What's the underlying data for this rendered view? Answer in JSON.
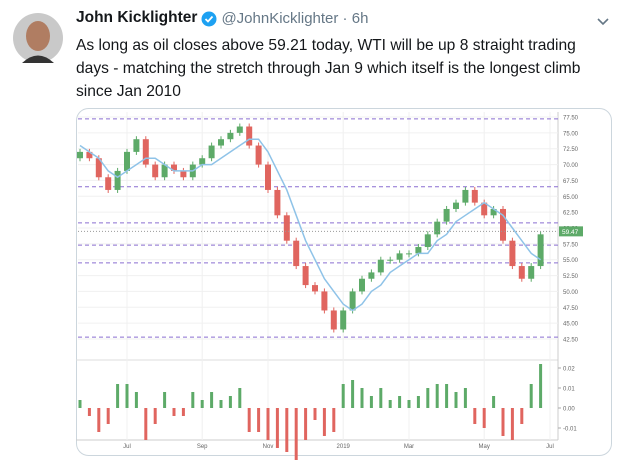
{
  "tweet": {
    "name": "John Kicklighter",
    "handle": "@JohnKicklighter",
    "time": "6h",
    "text": "As long as oil closes above 59.21 today, WTI will be up 8 straight trading days - matching the stretch through Jan 9 which itself is the longest climb since Jan 2010"
  },
  "chart_data": {
    "type": "candlestick",
    "categories": [
      null,
      null,
      null,
      null,
      null,
      "Jul",
      null,
      null,
      null,
      null,
      null,
      null,
      null,
      "Sep",
      null,
      null,
      null,
      null,
      null,
      null,
      "Nov",
      null,
      null,
      null,
      null,
      null,
      null,
      null,
      "2019",
      null,
      null,
      null,
      null,
      null,
      null,
      "Mar",
      null,
      null,
      null,
      null,
      null,
      null,
      null,
      "May",
      null,
      null,
      null,
      null,
      null,
      null,
      "Jul"
    ],
    "open": [
      71,
      72,
      71,
      68,
      66,
      69,
      72,
      74,
      70,
      68,
      70,
      69,
      68,
      70,
      71,
      73,
      74,
      75,
      76,
      73,
      70,
      66,
      62,
      58,
      54,
      51,
      50,
      47,
      44,
      47,
      50,
      52,
      53,
      55,
      55,
      56,
      56,
      57,
      59,
      61,
      63,
      64,
      66,
      64,
      62,
      63,
      58,
      54,
      52,
      54,
      null
    ],
    "close": [
      72,
      71,
      68,
      66,
      69,
      72,
      74,
      70,
      68,
      70,
      69,
      68,
      70,
      71,
      73,
      74,
      75,
      76,
      73,
      70,
      66,
      62,
      58,
      54,
      51,
      50,
      47,
      44,
      47,
      50,
      52,
      53,
      55,
      55,
      56,
      56,
      57,
      59,
      61,
      63,
      64,
      66,
      64,
      62,
      63,
      58,
      54,
      52,
      54,
      59,
      null
    ],
    "moving_average": [
      73,
      72,
      71,
      69,
      68,
      69,
      70,
      71,
      71,
      70,
      69,
      69,
      69,
      70,
      70,
      71,
      72,
      73,
      74,
      74,
      72,
      69,
      66,
      62,
      58,
      55,
      52,
      50,
      48,
      47,
      48,
      50,
      51,
      53,
      54,
      55,
      56,
      56,
      58,
      59,
      61,
      62,
      63,
      64,
      63,
      62,
      60,
      58,
      56,
      55,
      null
    ],
    "up_color": "#5daa68",
    "down_color": "#e0655f",
    "ma_color": "#8fc3e8",
    "hlines": [
      77.2,
      66.5,
      60.8,
      57.3,
      54.5,
      42.8
    ],
    "last_price": 59.47,
    "ylim": [
      42.5,
      77.5
    ],
    "yticks": [
      {
        "value": 42.5,
        "label": "42.50"
      },
      {
        "value": 45,
        "label": "45.00"
      },
      {
        "value": 47.5,
        "label": "47.50"
      },
      {
        "value": 50,
        "label": "50.00"
      },
      {
        "value": 52.5,
        "label": "52.50"
      },
      {
        "value": 55,
        "label": "55.00"
      },
      {
        "value": 57.5,
        "label": "57.50"
      },
      {
        "value": 60,
        "label": "60.00"
      },
      {
        "value": 62.5,
        "label": "62.50"
      },
      {
        "value": 65,
        "label": "65.00"
      },
      {
        "value": 67.5,
        "label": "67.50"
      },
      {
        "value": 70,
        "label": "70.00"
      },
      {
        "value": 72.5,
        "label": "72.50"
      },
      {
        "value": 75,
        "label": "75.00"
      },
      {
        "value": 77.5,
        "label": "77.50"
      }
    ],
    "momentum": [
      0.004,
      -0.004,
      -0.012,
      -0.008,
      0.012,
      0.012,
      0.008,
      -0.016,
      -0.008,
      0.008,
      -0.004,
      -0.004,
      0.008,
      0.004,
      0.008,
      0.004,
      0.006,
      0.01,
      -0.012,
      -0.012,
      -0.016,
      -0.02,
      -0.022,
      -0.026,
      -0.016,
      -0.006,
      -0.014,
      -0.012,
      0.012,
      0.014,
      0.01,
      0.006,
      0.01,
      0.004,
      0.006,
      0.004,
      0.006,
      0.01,
      0.012,
      0.012,
      0.008,
      0.01,
      -0.008,
      -0.01,
      0.006,
      -0.014,
      -0.016,
      -0.008,
      0.012,
      0.022,
      null
    ],
    "y2ticks": [
      0.02,
      0.01,
      {
        "value": 0,
        "label": "0.00"
      },
      -0.01
    ],
    "grid": true
  }
}
